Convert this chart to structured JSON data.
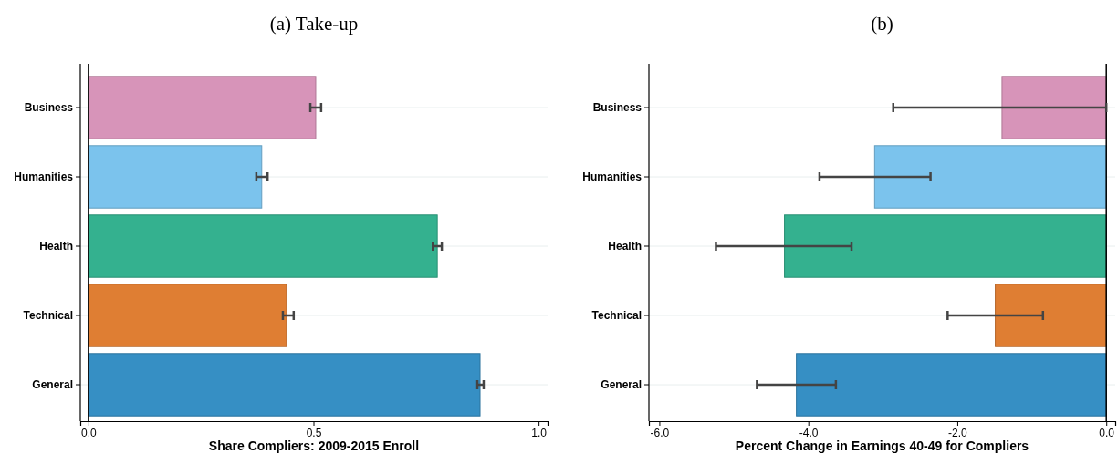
{
  "chart_data": [
    {
      "type": "bar",
      "orientation": "horizontal",
      "title": "(a) Take-up",
      "xlabel": "Share Compliers: 2009-2015 Enroll",
      "categories": [
        "Business",
        "Humanities",
        "Health",
        "Technical",
        "General"
      ],
      "values": [
        0.505,
        0.385,
        0.775,
        0.44,
        0.87
      ],
      "colors": [
        "#d794b9",
        "#7bc3ed",
        "#34b18f",
        "#df7e33",
        "#368fc4"
      ],
      "errors": [
        [
          0.493,
          0.517
        ],
        [
          0.373,
          0.398
        ],
        [
          0.765,
          0.785
        ],
        [
          0.432,
          0.456
        ],
        [
          0.864,
          0.878
        ]
      ],
      "xlim": [
        -0.018,
        1.02
      ],
      "xticks": [
        {
          "value": 0,
          "label": "0.0"
        },
        {
          "value": 0.5,
          "label": "0.5"
        },
        {
          "value": 1,
          "label": "1.0"
        }
      ],
      "grid": "y",
      "ref_lines": [
        {
          "axis": "x",
          "value": 0,
          "label": null
        }
      ]
    },
    {
      "type": "bar",
      "orientation": "horizontal",
      "title": "(b)",
      "xlabel": "Percent Change in Earnings 40-49 for Compliers",
      "categories": [
        "Business",
        "Humanities",
        "Health",
        "Technical",
        "General"
      ],
      "values": [
        -1.4,
        -3.11,
        -4.32,
        -1.49,
        -4.16
      ],
      "colors": [
        "#d794b9",
        "#7bc3ed",
        "#34b18f",
        "#df7e33",
        "#368fc4"
      ],
      "errors": [
        [
          -2.86,
          0
        ],
        [
          -3.85,
          -2.36
        ],
        [
          -5.24,
          -3.42
        ],
        [
          -2.13,
          -0.85
        ],
        [
          -4.69,
          -3.63
        ]
      ],
      "xlim": [
        -6.14,
        0.12
      ],
      "xticks": [
        {
          "value": -6,
          "label": "-6.0"
        },
        {
          "value": -4,
          "label": "-4.0"
        },
        {
          "value": -2,
          "label": "-2.0"
        },
        {
          "value": 0,
          "label": "0.0"
        }
      ],
      "grid": "y",
      "ref_lines": [
        {
          "axis": "x",
          "value": 0,
          "label": null
        }
      ]
    }
  ]
}
